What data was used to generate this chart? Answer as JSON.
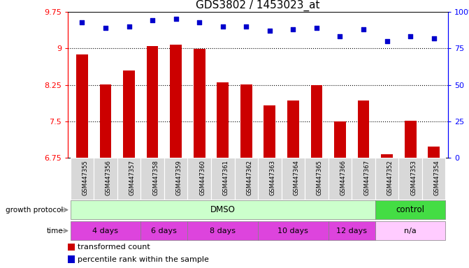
{
  "title": "GDS3802 / 1453023_at",
  "samples": [
    "GSM447355",
    "GSM447356",
    "GSM447357",
    "GSM447358",
    "GSM447359",
    "GSM447360",
    "GSM447361",
    "GSM447362",
    "GSM447363",
    "GSM447364",
    "GSM447365",
    "GSM447366",
    "GSM447367",
    "GSM447352",
    "GSM447353",
    "GSM447354"
  ],
  "red_values": [
    8.87,
    8.26,
    8.55,
    9.05,
    9.08,
    8.99,
    8.3,
    8.26,
    7.83,
    7.93,
    8.24,
    7.5,
    7.93,
    6.82,
    7.51,
    6.98
  ],
  "blue_values": [
    93,
    89,
    90,
    94,
    95,
    93,
    90,
    90,
    87,
    88,
    89,
    83,
    88,
    80,
    83,
    82
  ],
  "ylim_left": [
    6.75,
    9.75
  ],
  "ylim_right": [
    0,
    100
  ],
  "yticks_left": [
    6.75,
    7.5,
    8.25,
    9.0,
    9.75
  ],
  "ytick_labels_left": [
    "6.75",
    "7.5",
    "8.25",
    "9",
    "9.75"
  ],
  "yticks_right": [
    0,
    25,
    50,
    75,
    100
  ],
  "ytick_labels_right": [
    "0",
    "25",
    "50",
    "75",
    "100%"
  ],
  "gridlines": [
    9.0,
    8.25,
    7.5
  ],
  "bar_color": "#cc0000",
  "dot_color": "#0000cc",
  "bar_width": 0.5,
  "growth_protocol_label": "growth protocol",
  "time_label": "time",
  "dmso_label": "DMSO",
  "control_label": "control",
  "dmso_color_light": "#ccffcc",
  "dmso_color_strong": "#44dd44",
  "time_color_strong": "#dd44dd",
  "time_color_light": "#ffccff",
  "sample_bg_color": "#d8d8d8",
  "legend_red_label": "transformed count",
  "legend_blue_label": "percentile rank within the sample",
  "title_fontsize": 11,
  "tick_fontsize": 8,
  "label_fontsize": 8,
  "time_groups_dmso": [
    {
      "label": "4 days",
      "start": 0,
      "end": 3
    },
    {
      "label": "6 days",
      "start": 3,
      "end": 5
    },
    {
      "label": "8 days",
      "start": 5,
      "end": 8
    },
    {
      "label": "10 days",
      "start": 8,
      "end": 11
    },
    {
      "label": "12 days",
      "start": 11,
      "end": 13
    }
  ],
  "time_groups_ctrl": [
    {
      "label": "n/a",
      "start": 13,
      "end": 16
    }
  ]
}
